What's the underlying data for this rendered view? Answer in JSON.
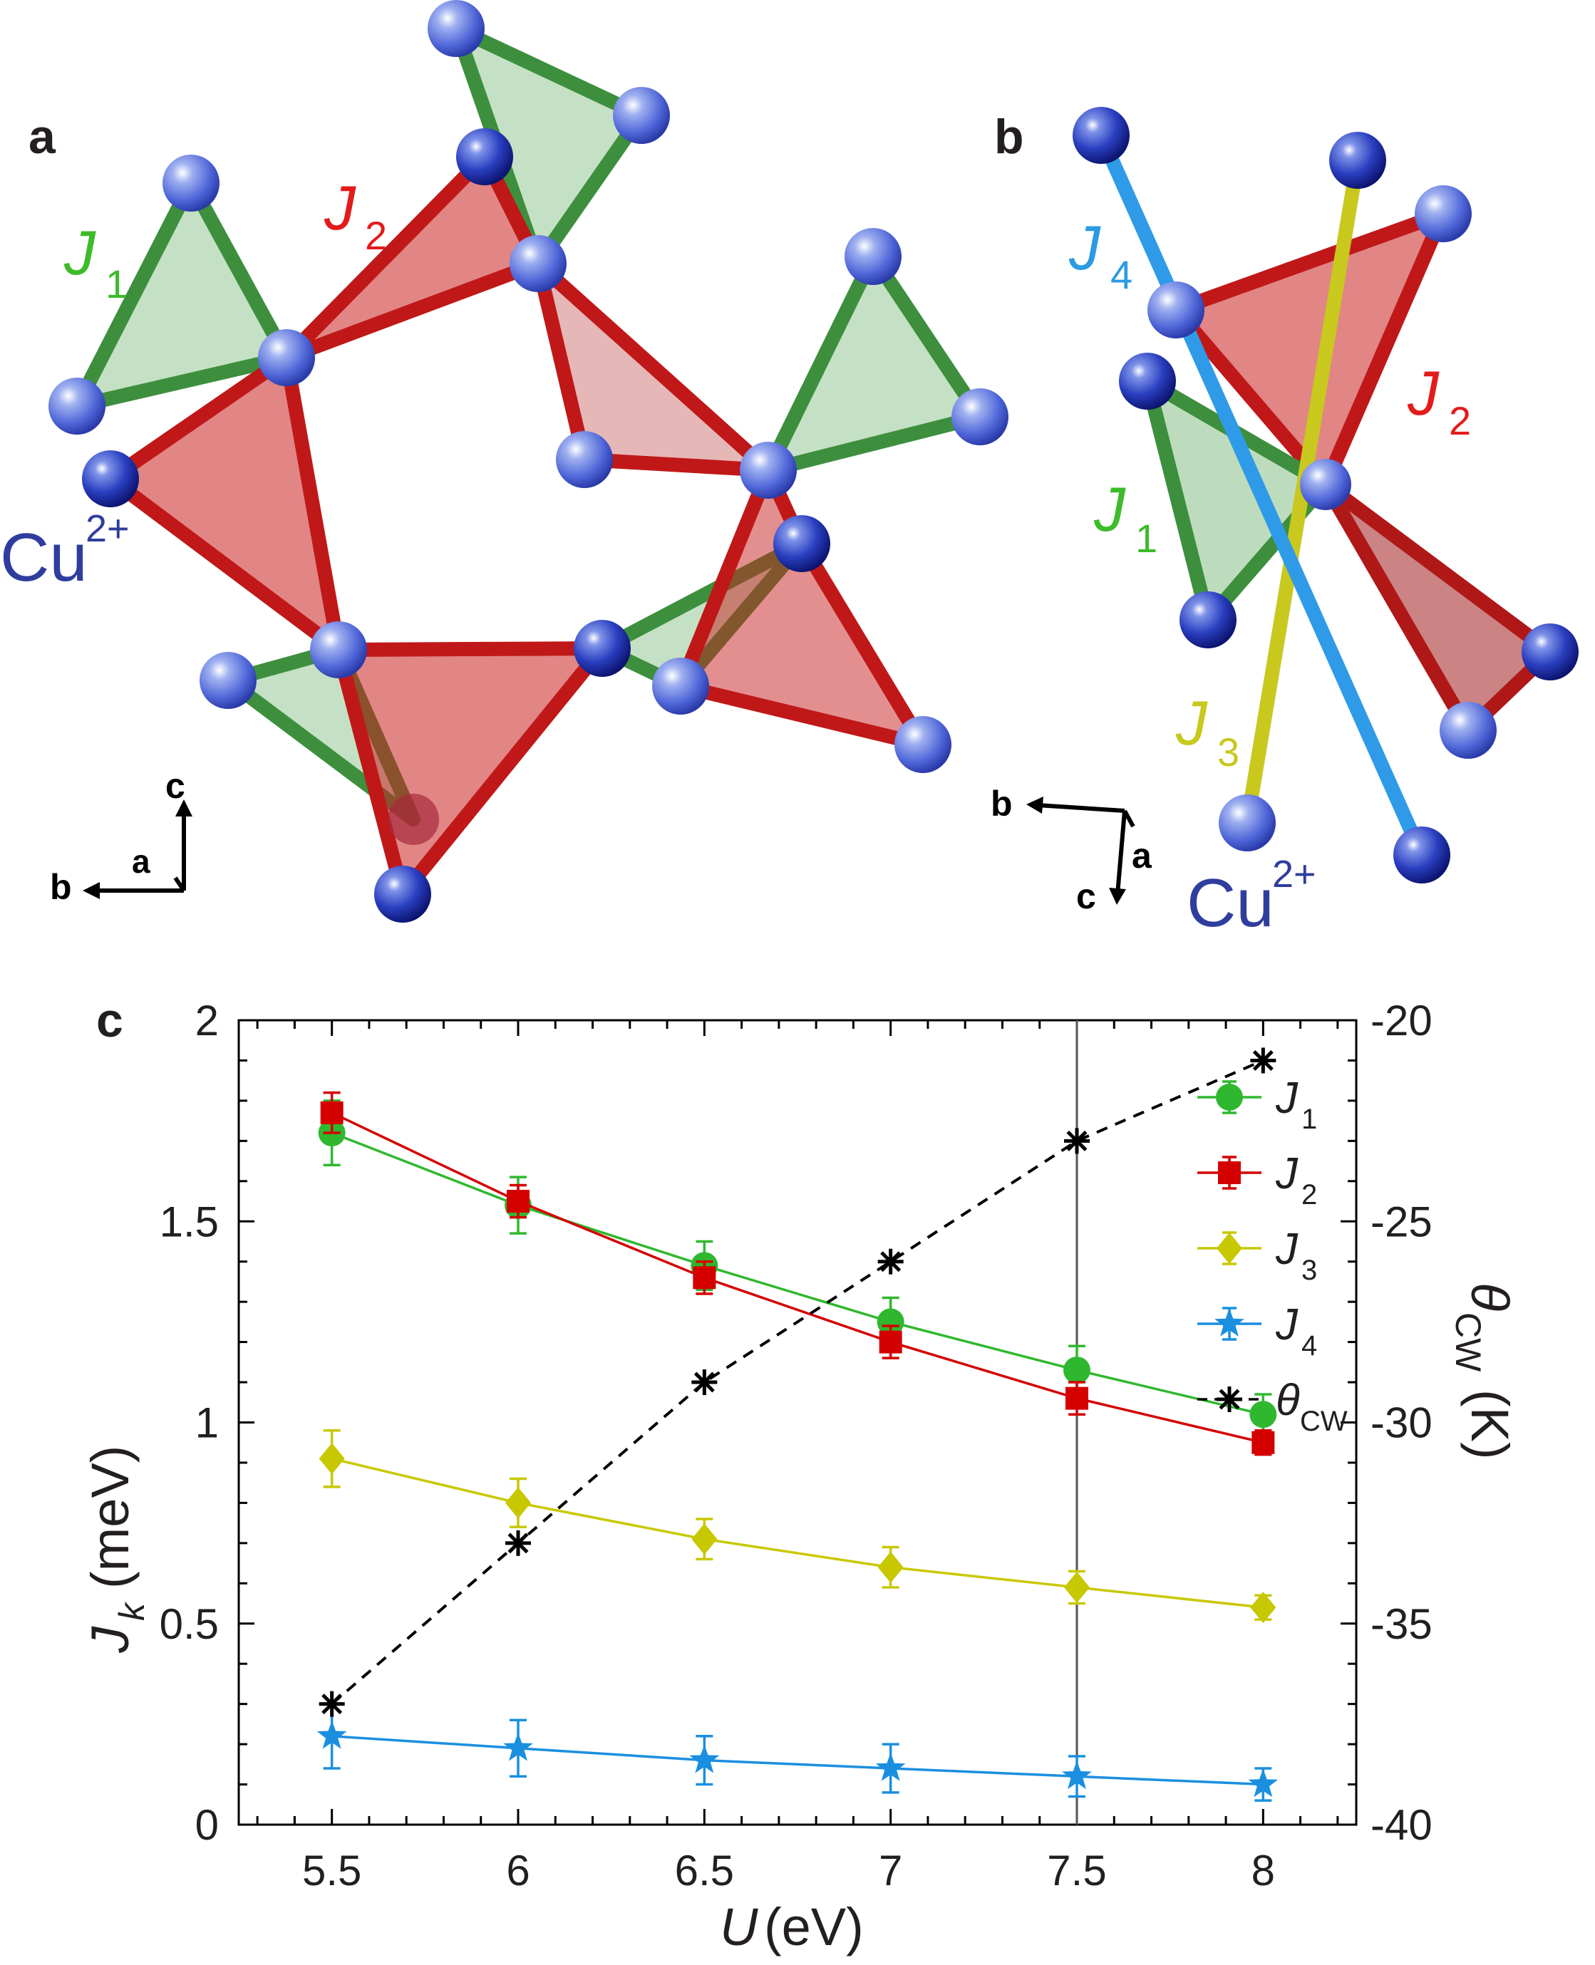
{
  "panels": {
    "a": {
      "label": "a",
      "j1": "J",
      "j1_sub": "1",
      "j2": "J",
      "j2_sub": "2",
      "ion": "Cu",
      "ion_sup": "2+",
      "axes": {
        "c": "c",
        "b": "b",
        "a": "a"
      }
    },
    "b": {
      "label": "b",
      "j4": "J",
      "j4_sub": "4",
      "j2": "J",
      "j2_sub": "2",
      "j1": "J",
      "j1_sub": "1",
      "j3": "J",
      "j3_sub": "3",
      "ion": "Cu",
      "ion_sup": "2+",
      "axes": {
        "b": "b",
        "a": "a",
        "c": "c"
      }
    },
    "c": {
      "label": "c"
    }
  },
  "colors": {
    "j1": "#2fb82f",
    "j2": "#d40000",
    "j3": "#c8c800",
    "j4": "#1a8fe0",
    "theta": "#000000",
    "cu": "#2233aa",
    "green_bond": "#4a9a4a",
    "red_bond": "#c81818"
  },
  "chart_data": {
    "type": "line",
    "x": [
      5.5,
      6,
      6.5,
      7,
      7.5,
      8
    ],
    "xlabel": "U",
    "xlabel_unit": "(eV)",
    "ylabel": "J",
    "ylabel_sub": "k",
    "ylabel_unit": "(meV)",
    "y2label": "θ",
    "y2label_sub": "CW",
    "y2label_unit": "(K)",
    "xlim": [
      5.25,
      8.25
    ],
    "ylim": [
      0,
      2
    ],
    "y2lim": [
      -40,
      -20
    ],
    "xticks": [
      "5.5",
      "6",
      "6.5",
      "7",
      "7.5",
      "8"
    ],
    "yticks": [
      "0",
      "0.5",
      "1",
      "1.5",
      "2"
    ],
    "y2ticks": [
      "-40",
      "-35",
      "-30",
      "-25",
      "-20"
    ],
    "vline_x": 7.5,
    "series": [
      {
        "key": "j1",
        "name": "J",
        "sub": "1",
        "marker": "circle",
        "values": [
          1.72,
          1.54,
          1.39,
          1.25,
          1.13,
          1.02
        ],
        "errors": [
          0.08,
          0.07,
          0.06,
          0.06,
          0.06,
          0.05
        ]
      },
      {
        "key": "j2",
        "name": "J",
        "sub": "2",
        "marker": "square",
        "values": [
          1.77,
          1.55,
          1.36,
          1.2,
          1.06,
          0.95
        ],
        "errors": [
          0.05,
          0.04,
          0.04,
          0.04,
          0.04,
          0.03
        ]
      },
      {
        "key": "j3",
        "name": "J",
        "sub": "3",
        "marker": "diamond",
        "values": [
          0.91,
          0.8,
          0.71,
          0.64,
          0.59,
          0.54
        ],
        "errors": [
          0.07,
          0.06,
          0.05,
          0.05,
          0.04,
          0.03
        ]
      },
      {
        "key": "j4",
        "name": "J",
        "sub": "4",
        "marker": "star",
        "values": [
          0.22,
          0.19,
          0.16,
          0.14,
          0.12,
          0.1
        ],
        "errors": [
          0.08,
          0.07,
          0.06,
          0.06,
          0.05,
          0.04
        ]
      },
      {
        "key": "theta",
        "name": "θ",
        "sub": "CW",
        "marker": "asterisk",
        "axis": "right",
        "dashed": true,
        "values": [
          -37.0,
          -33.0,
          -29.0,
          -26.0,
          -23.0,
          -21.0
        ]
      }
    ]
  }
}
